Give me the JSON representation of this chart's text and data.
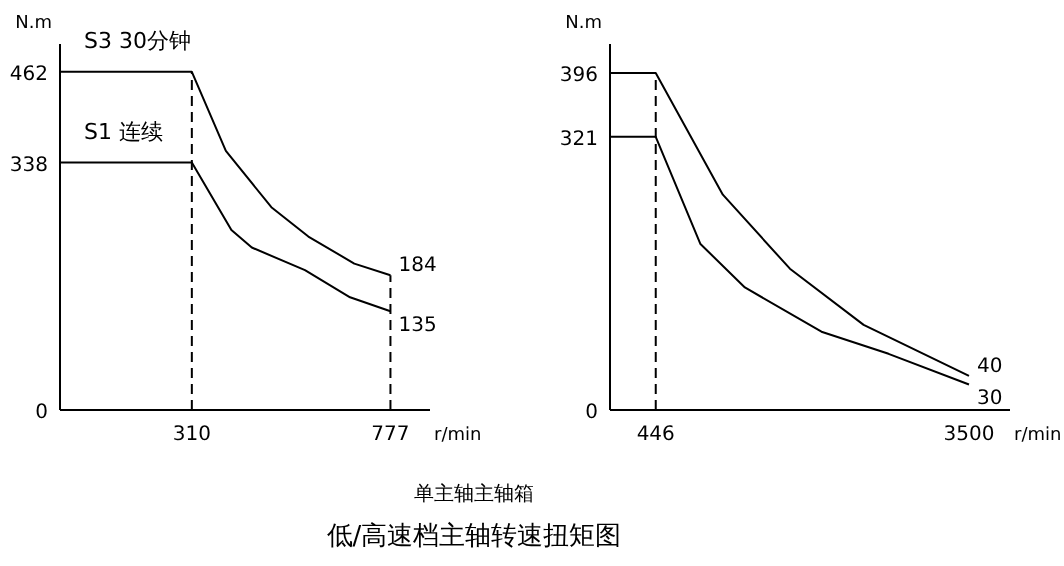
{
  "chart_data": [
    {
      "type": "line",
      "title": "低/高速档主轴转速扭矩图",
      "subtitle": "单主轴主轴箱",
      "xlabel": "r/min",
      "ylabel": "N.m",
      "xlim": [
        0,
        870
      ],
      "xticks": [
        310,
        777
      ],
      "ylim": [
        0,
        500
      ],
      "yticks": [
        0,
        338,
        462
      ],
      "line_style": "solid",
      "series": [
        {
          "name": "S3 30分钟",
          "color": "#000000",
          "x": [
            0,
            310,
            390,
            497,
            584,
            692,
            777
          ],
          "values": [
            462,
            462,
            354,
            277,
            237,
            200,
            184
          ],
          "value_labels": [
            null,
            null,
            null,
            null,
            null,
            null,
            "184"
          ]
        },
        {
          "name": "S1 连续",
          "color": "#000000",
          "x": [
            0,
            310,
            403,
            451,
            576,
            682,
            777
          ],
          "values": [
            338,
            338,
            246,
            222,
            191,
            154,
            135
          ],
          "value_labels": [
            null,
            null,
            null,
            null,
            null,
            null,
            "135"
          ]
        }
      ],
      "ref_lines": [
        {
          "axis": "x",
          "value": 310,
          "line_style": "dashed"
        },
        {
          "axis": "x",
          "value": 777,
          "line_style": "dashed"
        }
      ]
    },
    {
      "type": "line",
      "xlabel": "r/min",
      "ylabel": "N.m",
      "xlim": [
        0,
        3900
      ],
      "xticks": [
        446,
        3500
      ],
      "ylim": [
        0,
        430
      ],
      "yticks": [
        0,
        321,
        396
      ],
      "line_style": "solid",
      "series": [
        {
          "color": "#000000",
          "x": [
            0,
            446,
            1100,
            1754,
            2473,
            3500
          ],
          "values": [
            396,
            396,
            253,
            166,
            100,
            40
          ],
          "value_labels": [
            null,
            null,
            null,
            null,
            null,
            "40"
          ]
        },
        {
          "color": "#000000",
          "x": [
            0,
            446,
            882,
            1315,
            2062,
            2716,
            3500
          ],
          "values": [
            321,
            321,
            195,
            144,
            92,
            66,
            30
          ],
          "value_labels": [
            null,
            null,
            null,
            null,
            null,
            null,
            "30"
          ]
        }
      ],
      "ref_lines": [
        {
          "axis": "x",
          "value": 446,
          "line_style": "dashed"
        }
      ]
    }
  ]
}
